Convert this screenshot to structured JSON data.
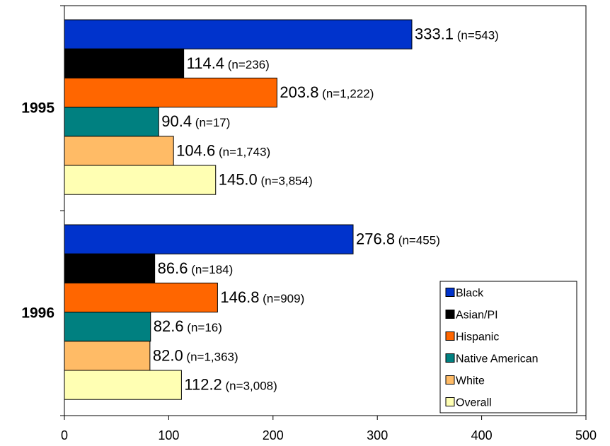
{
  "chart_data": {
    "type": "bar",
    "orientation": "horizontal",
    "title": "",
    "xlabel": "",
    "ylabel": "",
    "xlim": [
      0,
      500
    ],
    "x_ticks": [
      0,
      100,
      200,
      300,
      400,
      500
    ],
    "grid": false,
    "legend_position": "bottom-right",
    "categories": [
      "1995",
      "1996"
    ],
    "series": [
      {
        "name": "Black",
        "color": "#0033cc",
        "values": [
          333.1,
          276.8
        ],
        "labels": [
          "333.1",
          "276.8"
        ],
        "n_labels": [
          "(n=543)",
          "(n=455)"
        ]
      },
      {
        "name": "Asian/PI",
        "color": "#000000",
        "values": [
          114.4,
          86.6
        ],
        "labels": [
          "114.4",
          "86.6"
        ],
        "n_labels": [
          "(n=236)",
          "(n=184)"
        ]
      },
      {
        "name": "Hispanic",
        "color": "#ff6600",
        "values": [
          203.8,
          146.8
        ],
        "labels": [
          "203.8",
          "146.8"
        ],
        "n_labels": [
          "(n=1,222)",
          "(n=909)"
        ]
      },
      {
        "name": "Native American",
        "color": "#008080",
        "values": [
          90.4,
          82.6
        ],
        "labels": [
          "90.4",
          "82.6"
        ],
        "n_labels": [
          "(n=17)",
          "(n=16)"
        ]
      },
      {
        "name": "White",
        "color": "#ffbb66",
        "values": [
          104.6,
          82.0
        ],
        "labels": [
          "104.6",
          "82.0"
        ],
        "n_labels": [
          "(n=1,743)",
          "(n=1,363)"
        ]
      },
      {
        "name": "Overall",
        "color": "#ffffb3",
        "values": [
          145.0,
          112.2
        ],
        "labels": [
          "145.0",
          "112.2"
        ],
        "n_labels": [
          "(n=3,854)",
          "(n=3,008)"
        ]
      }
    ]
  }
}
